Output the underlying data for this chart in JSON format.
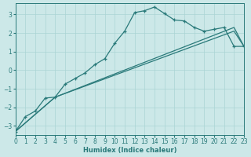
{
  "xlabel": "Humidex (Indice chaleur)",
  "bg_color": "#cce8e8",
  "line_color": "#2a7a7a",
  "grid_color": "#aad4d4",
  "xlim": [
    0,
    23
  ],
  "ylim": [
    -3.5,
    3.6
  ],
  "yticks": [
    -3,
    -2,
    -1,
    0,
    1,
    2,
    3
  ],
  "xticks": [
    0,
    1,
    2,
    3,
    4,
    5,
    6,
    7,
    8,
    9,
    10,
    11,
    12,
    13,
    14,
    15,
    16,
    17,
    18,
    19,
    20,
    21,
    22,
    23
  ],
  "main_x": [
    0,
    1,
    2,
    3,
    4,
    5,
    6,
    7,
    8,
    9,
    10,
    11,
    12,
    13,
    14,
    15,
    16,
    17,
    18,
    19,
    20,
    21,
    22,
    23
  ],
  "main_y": [
    -3.3,
    -2.5,
    -2.2,
    -1.5,
    -1.45,
    -0.75,
    -0.45,
    -0.15,
    0.3,
    0.62,
    1.45,
    2.1,
    3.1,
    3.2,
    3.4,
    3.05,
    2.7,
    2.65,
    2.3,
    2.1,
    2.2,
    2.3,
    1.28,
    1.28
  ],
  "line2_x": [
    0,
    4,
    22,
    23
  ],
  "line2_y": [
    -3.3,
    -1.45,
    2.1,
    1.28
  ],
  "line3_x": [
    0,
    4,
    22,
    23
  ],
  "line3_y": [
    -3.3,
    -1.45,
    2.3,
    1.28
  ]
}
